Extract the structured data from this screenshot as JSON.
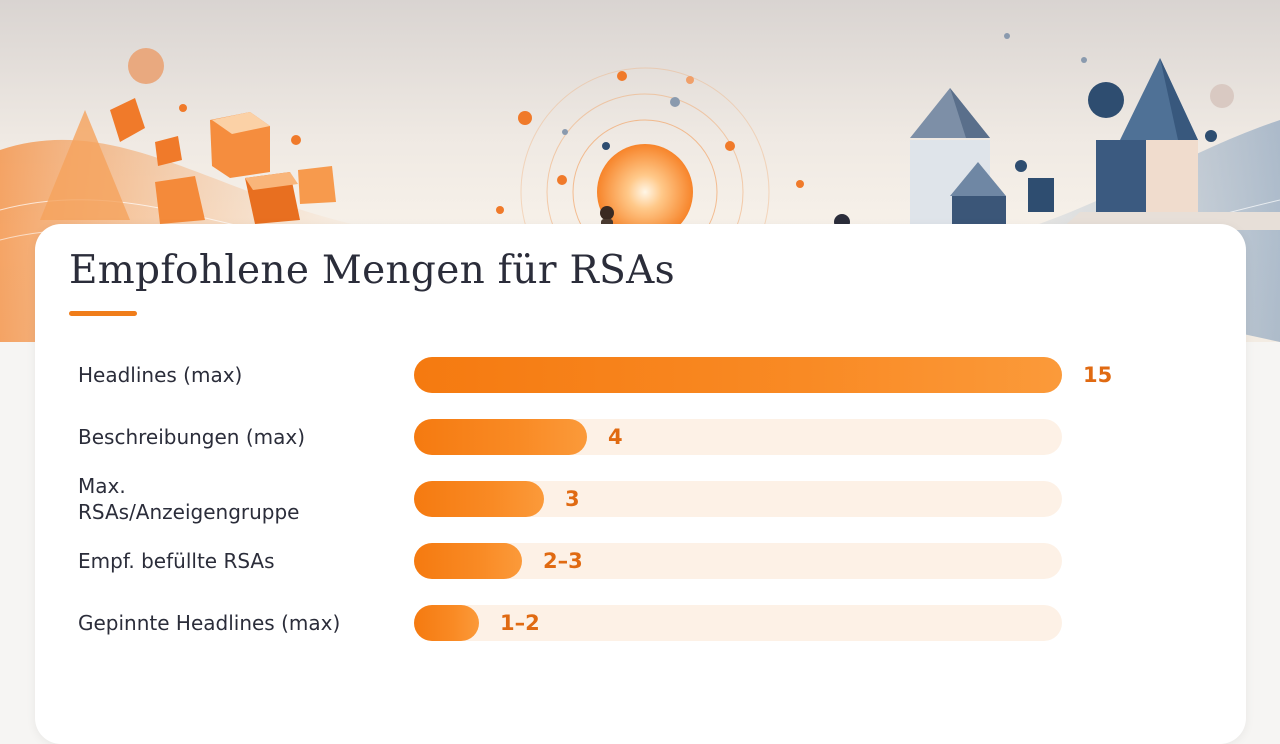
{
  "page": {
    "title": "Empfohlene Mengen für RSAs",
    "accent_color": "#f07d1a",
    "hero_illustration": "abstract-geometric-shapes-orange-blue"
  },
  "chart_data": {
    "type": "bar",
    "orientation": "horizontal",
    "title": "Empfohlene Mengen für RSAs",
    "xlabel": "",
    "ylabel": "",
    "xlim": [
      0,
      15
    ],
    "grid": false,
    "legend": "none",
    "bar_color": "#f57a10",
    "track_color": "#fdf1e6",
    "categories": [
      "Headlines (max)",
      "Beschreibungen (max)",
      "Max.\nRSAs/Anzeigengruppe",
      "Empf. befüllte RSAs",
      "Gepinnte Headlines (max)"
    ],
    "values": [
      15,
      4,
      3,
      2.5,
      1.5
    ],
    "value_labels": [
      "15",
      "4",
      "3",
      "2–3",
      "1–2"
    ]
  }
}
